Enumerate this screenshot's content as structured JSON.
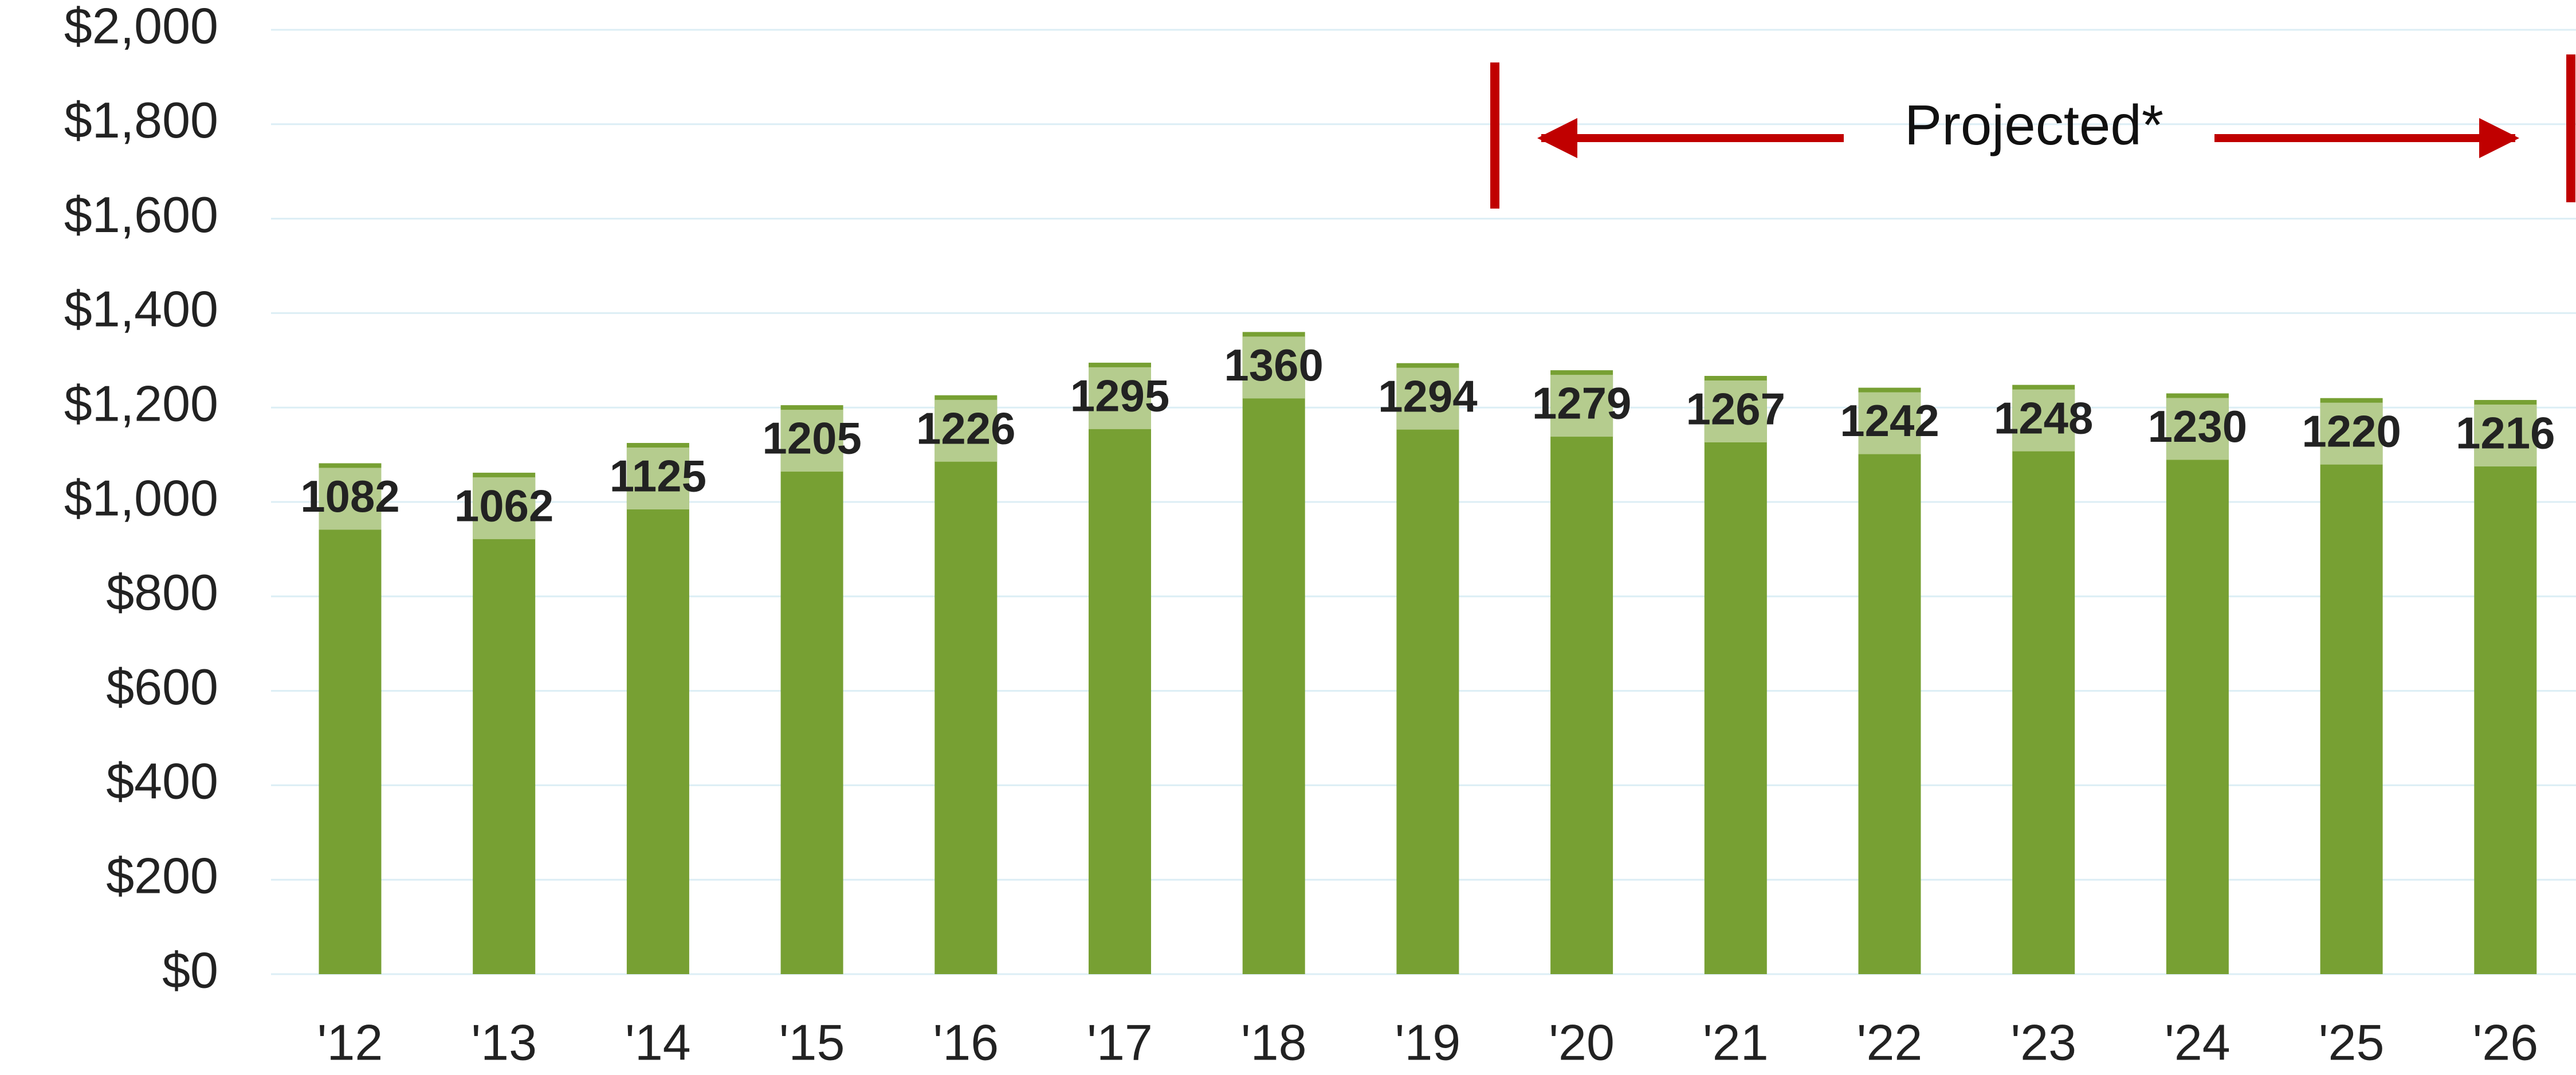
{
  "chart_data": {
    "type": "bar",
    "annotation": "Projected*",
    "categories": [
      "'12",
      "'13",
      "'14",
      "'15",
      "'16",
      "'17",
      "'18",
      "'19",
      "'20",
      "'21",
      "'22",
      "'23",
      "'24",
      "'25",
      "'26"
    ],
    "values": [
      1082,
      1062,
      1125,
      1205,
      1226,
      1295,
      1360,
      1294,
      1279,
      1267,
      1242,
      1248,
      1230,
      1220,
      1216
    ],
    "color": "#77a033",
    "label_color": "#b5cc8e",
    "ylim": [
      0,
      2000
    ],
    "yticks": [
      {
        "value": 0,
        "label": "$0"
      },
      {
        "value": 200,
        "label": "$200"
      },
      {
        "value": 400,
        "label": "$400"
      },
      {
        "value": 600,
        "label": "$600"
      },
      {
        "value": 800,
        "label": "$800"
      },
      {
        "value": 1000,
        "label": "$1,000"
      },
      {
        "value": 1200,
        "label": "$1,200"
      },
      {
        "value": 1400,
        "label": "$1,400"
      },
      {
        "value": 1600,
        "label": "$1,600"
      },
      {
        "value": 1800,
        "label": "$1,800"
      },
      {
        "value": 2000,
        "label": "$2,000"
      }
    ],
    "grid": true
  }
}
